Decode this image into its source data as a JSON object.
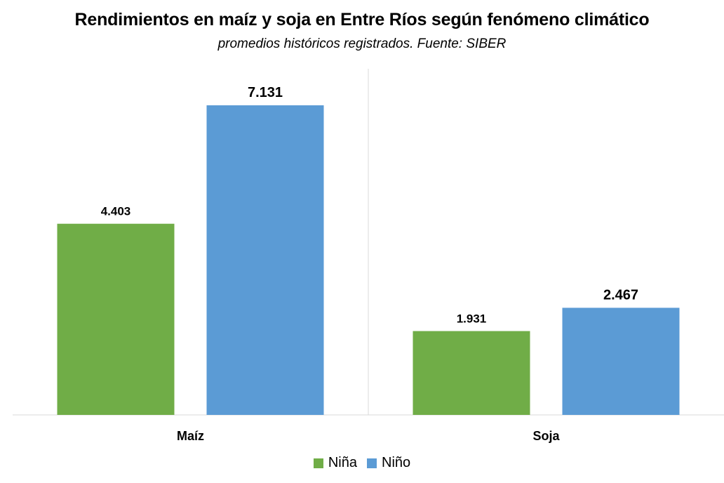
{
  "chart_data": {
    "type": "bar",
    "title": "Rendimientos en maíz y soja en Entre Ríos según fenómeno climático",
    "subtitle": "promedios históricos registrados. Fuente: SIBER",
    "categories": [
      "Maíz",
      "Soja"
    ],
    "series": [
      {
        "name": "Niña",
        "color": "#70ad47",
        "values": [
          4403,
          1931
        ],
        "labels": [
          "4.403",
          "1.931"
        ]
      },
      {
        "name": "Niño",
        "color": "#5b9bd5",
        "values": [
          7131,
          2467
        ],
        "labels": [
          "7.131",
          "2.467"
        ]
      }
    ],
    "ylim": [
      0,
      8000
    ],
    "grid": false,
    "legend": "bottom"
  }
}
